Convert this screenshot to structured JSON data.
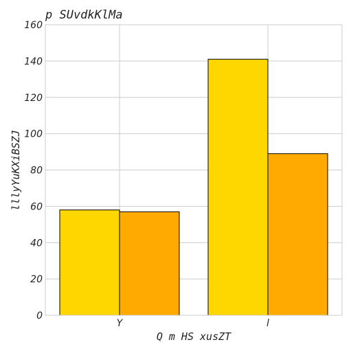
{
  "chart_data": {
    "type": "bar",
    "title": "p SUvdkKlMa",
    "xlabel": "Q m HS xusZT",
    "ylabel": "lllyYuKXiBSZJ",
    "categories": [
      "Y",
      "l"
    ],
    "series": [
      {
        "values": [
          58,
          141
        ],
        "color": "#FFD700"
      },
      {
        "values": [
          57,
          89
        ],
        "color": "#FFAA00"
      }
    ],
    "ylim": [
      0,
      160
    ],
    "yticks": [
      0,
      20,
      40,
      60,
      80,
      100,
      120,
      140,
      160
    ],
    "grid": true
  }
}
